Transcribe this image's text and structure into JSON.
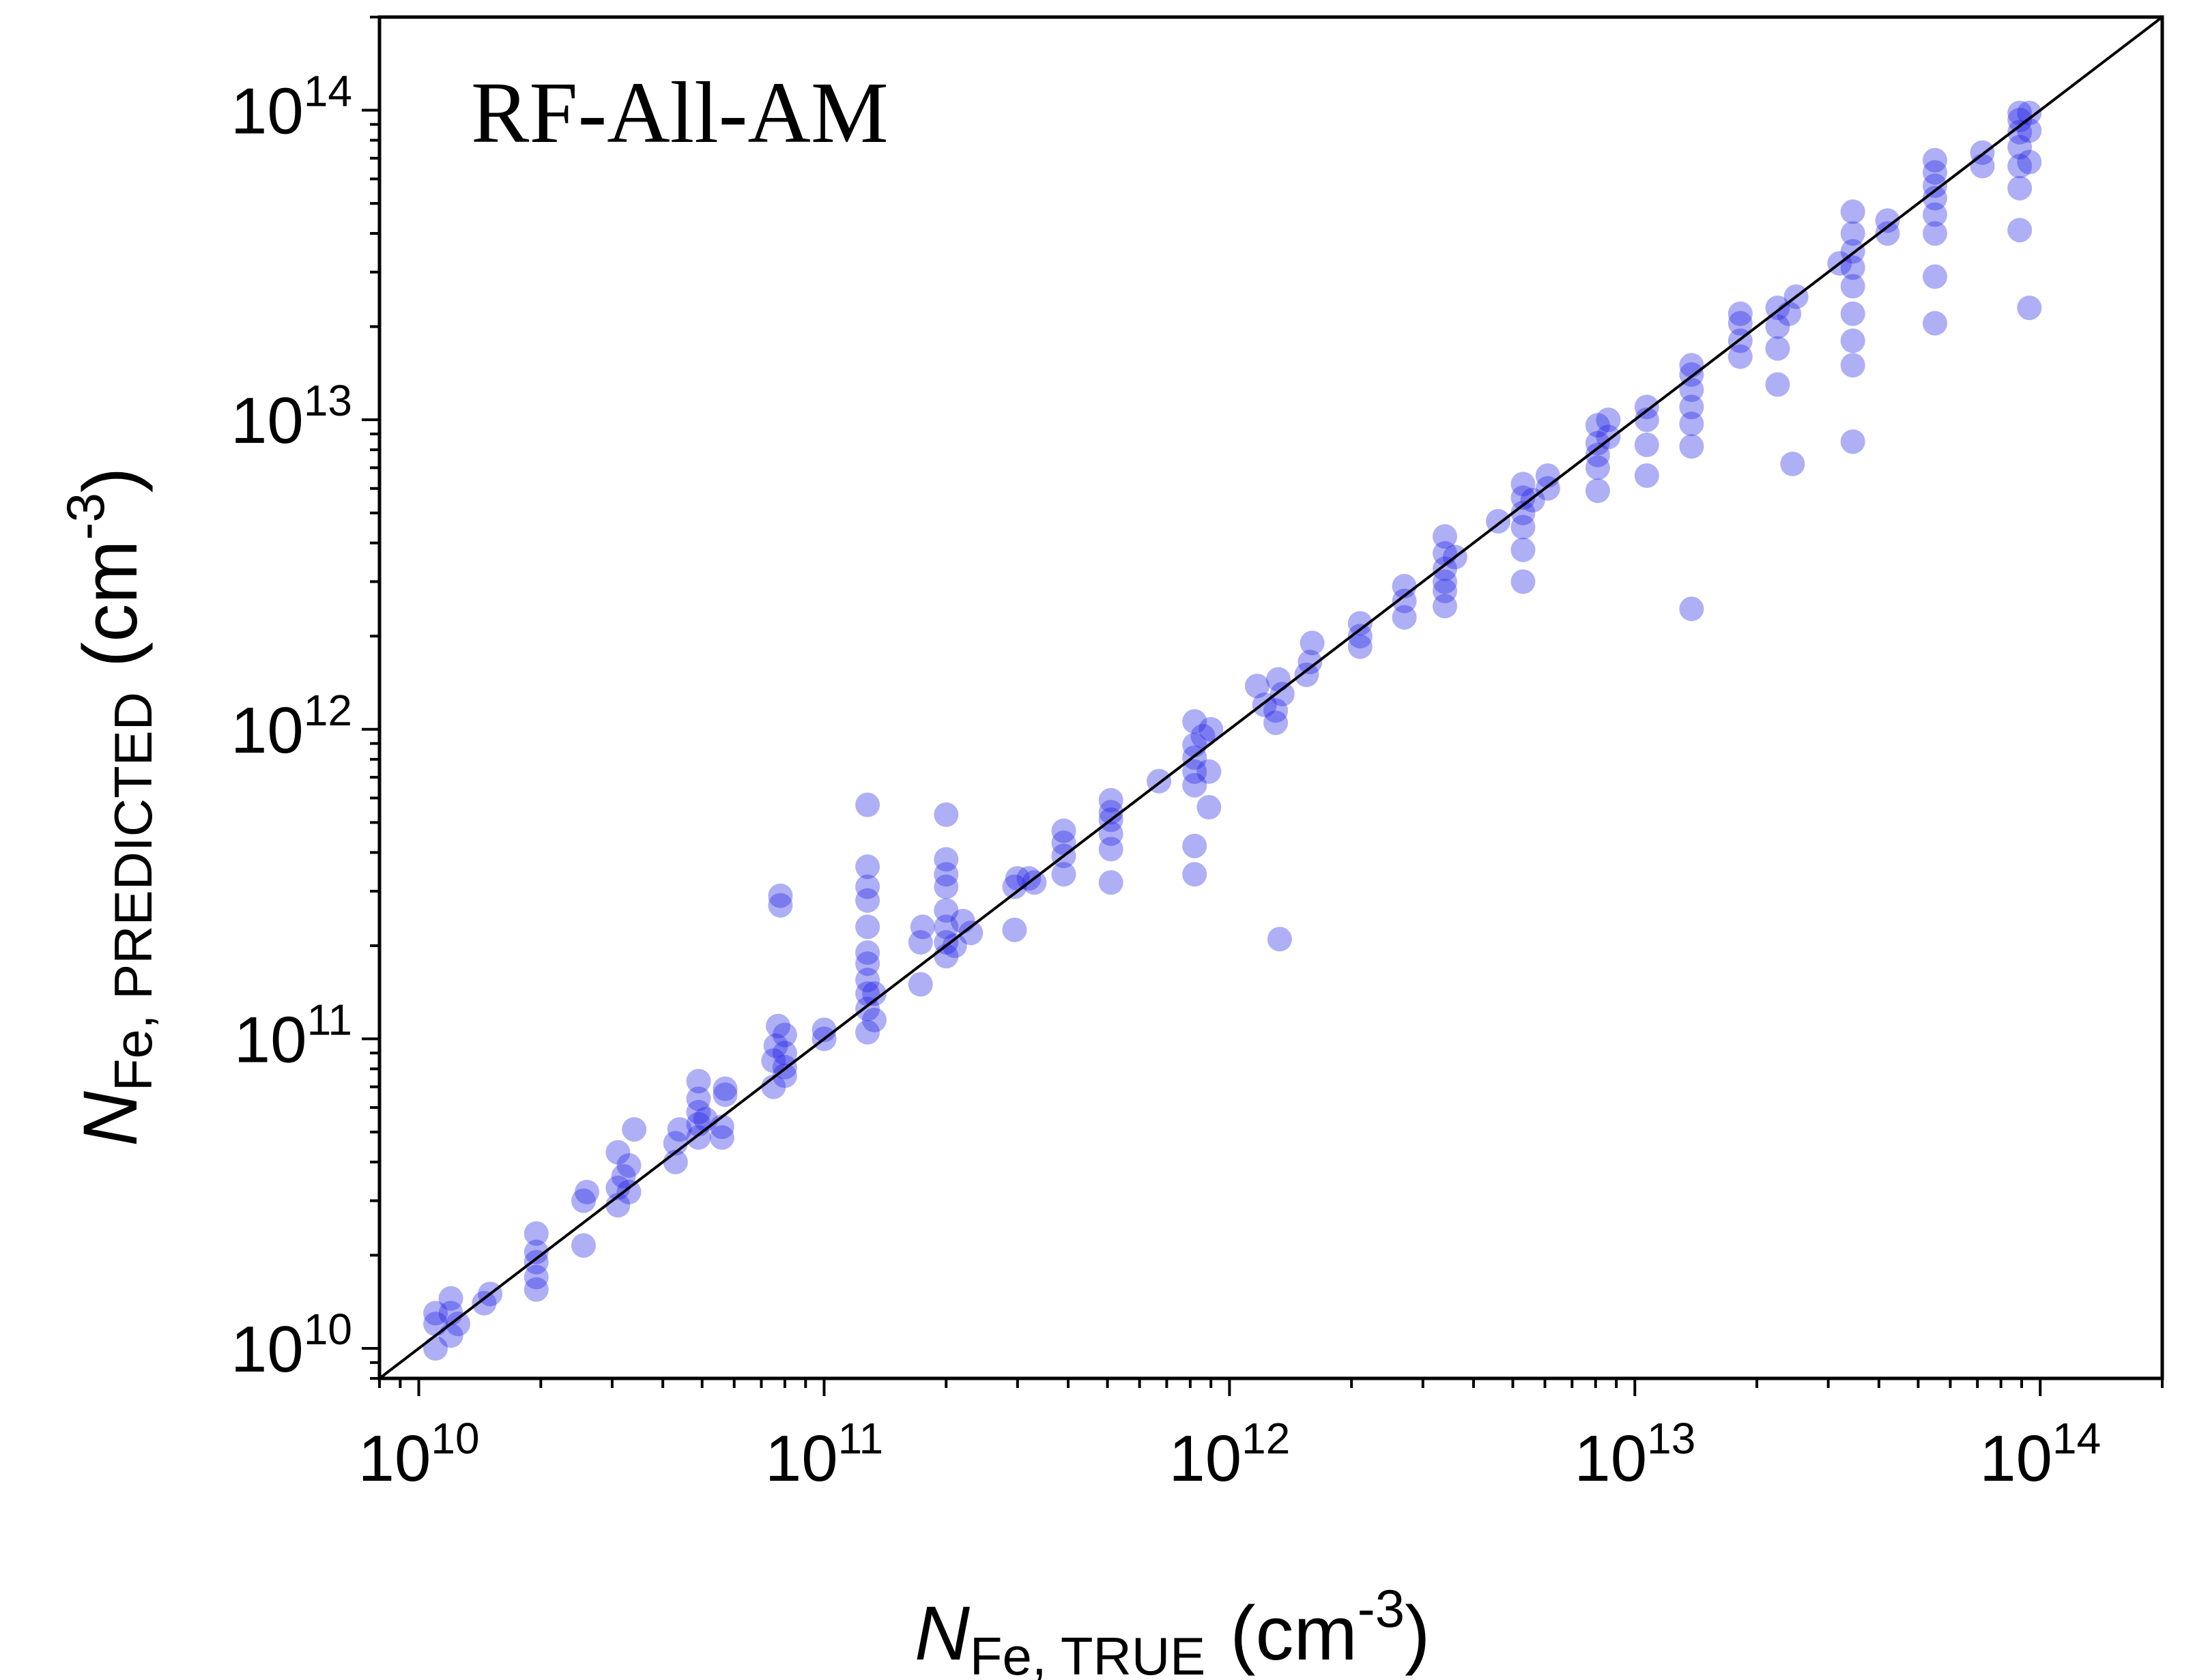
{
  "chart_data": {
    "type": "scatter",
    "title": "RF-All-AM",
    "xlabel": {
      "symbol": "N",
      "subscript": "Fe, TRUE",
      "unit": "(cm",
      "unit_exp": "-3",
      "unit_close": ")"
    },
    "ylabel": {
      "symbol": "N",
      "subscript": "Fe, PREDICTED",
      "unit": "(cm",
      "unit_exp": "-3",
      "unit_close": ")"
    },
    "x_scale": "log",
    "y_scale": "log",
    "xlim": [
      8000000000.0,
      200000000000000.0
    ],
    "ylim": [
      8000000000.0,
      200000000000000.0
    ],
    "x_ticks": [
      {
        "base": "10",
        "exp": "10",
        "value": 10000000000.0
      },
      {
        "base": "10",
        "exp": "11",
        "value": 100000000000.0
      },
      {
        "base": "10",
        "exp": "12",
        "value": 1000000000000.0
      },
      {
        "base": "10",
        "exp": "13",
        "value": 10000000000000.0
      },
      {
        "base": "10",
        "exp": "14",
        "value": 100000000000000.0
      }
    ],
    "y_ticks": [
      {
        "base": "10",
        "exp": "10",
        "value": 10000000000.0
      },
      {
        "base": "10",
        "exp": "11",
        "value": 100000000000.0
      },
      {
        "base": "10",
        "exp": "12",
        "value": 1000000000000.0
      },
      {
        "base": "10",
        "exp": "13",
        "value": 10000000000000.0
      },
      {
        "base": "10",
        "exp": "14",
        "value": 100000000000000.0
      }
    ],
    "reference_line": "y = x",
    "grid": false,
    "marker_color": "#1a1ae6",
    "line_color": "#000000",
    "points": [
      [
        11000000000.0,
        10000000000.0
      ],
      [
        11000000000.0,
        12000000000.0
      ],
      [
        11000000000.0,
        13000000000.0
      ],
      [
        12000000000.0,
        11000000000.0
      ],
      [
        12000000000.0,
        13000000000.0
      ],
      [
        12000000000.0,
        14500000000.0
      ],
      [
        12500000000.0,
        12000000000.0
      ],
      [
        14500000000.0,
        14000000000.0
      ],
      [
        15000000000.0,
        15000000000.0
      ],
      [
        19500000000.0,
        15500000000.0
      ],
      [
        19500000000.0,
        17000000000.0
      ],
      [
        19500000000.0,
        19000000000.0
      ],
      [
        19500000000.0,
        20500000000.0
      ],
      [
        19500000000.0,
        23500000000.0
      ],
      [
        25500000000.0,
        21500000000.0
      ],
      [
        25500000000.0,
        30000000000.0
      ],
      [
        26000000000.0,
        32000000000.0
      ],
      [
        31000000000.0,
        29000000000.0
      ],
      [
        31000000000.0,
        33000000000.0
      ],
      [
        32000000000.0,
        36000000000.0
      ],
      [
        31000000000.0,
        43000000000.0
      ],
      [
        33000000000.0,
        39000000000.0
      ],
      [
        34000000000.0,
        51000000000.0
      ],
      [
        33000000000.0,
        32000000000.0
      ],
      [
        43000000000.0,
        40000000000.0
      ],
      [
        43000000000.0,
        46000000000.0
      ],
      [
        44000000000.0,
        51000000000.0
      ],
      [
        49000000000.0,
        48000000000.0
      ],
      [
        49000000000.0,
        53000000000.0
      ],
      [
        49000000000.0,
        58000000000.0
      ],
      [
        49000000000.0,
        64000000000.0
      ],
      [
        49000000000.0,
        73000000000.0
      ],
      [
        51000000000.0,
        55000000000.0
      ],
      [
        56000000000.0,
        48000000000.0
      ],
      [
        56000000000.0,
        52000000000.0
      ],
      [
        57000000000.0,
        66000000000.0
      ],
      [
        57000000000.0,
        69000000000.0
      ],
      [
        75000000000.0,
        70000000000.0
      ],
      [
        75000000000.0,
        85000000000.0
      ],
      [
        76000000000.0,
        95000000000.0
      ],
      [
        77000000000.0,
        110000000000.0
      ],
      [
        78000000000.0,
        290000000000.0
      ],
      [
        78000000000.0,
        270000000000.0
      ],
      [
        80000000000.0,
        76000000000.0
      ],
      [
        80000000000.0,
        81000000000.0
      ],
      [
        80000000000.0,
        103000000000.0
      ],
      [
        80000000000.0,
        90000000000.0
      ],
      [
        100000000000.0,
        100000000000.0
      ],
      [
        100000000000.0,
        107000000000.0
      ],
      [
        128000000000.0,
        105000000000.0
      ],
      [
        128000000000.0,
        125000000000.0
      ],
      [
        128000000000.0,
        140000000000.0
      ],
      [
        128000000000.0,
        155000000000.0
      ],
      [
        128000000000.0,
        175000000000.0
      ],
      [
        128000000000.0,
        190000000000.0
      ],
      [
        128000000000.0,
        230000000000.0
      ],
      [
        128000000000.0,
        280000000000.0
      ],
      [
        128000000000.0,
        310000000000.0
      ],
      [
        128000000000.0,
        360000000000.0
      ],
      [
        128000000000.0,
        570000000000.0
      ],
      [
        133000000000.0,
        115000000000.0
      ],
      [
        133000000000.0,
        140000000000.0
      ],
      [
        173000000000.0,
        150000000000.0
      ],
      [
        173000000000.0,
        205000000000.0
      ],
      [
        175000000000.0,
        230000000000.0
      ],
      [
        200000000000.0,
        185000000000.0
      ],
      [
        200000000000.0,
        205000000000.0
      ],
      [
        200000000000.0,
        230000000000.0
      ],
      [
        200000000000.0,
        260000000000.0
      ],
      [
        200000000000.0,
        310000000000.0
      ],
      [
        200000000000.0,
        340000000000.0
      ],
      [
        200000000000.0,
        380000000000.0
      ],
      [
        200000000000.0,
        530000000000.0
      ],
      [
        210000000000.0,
        200000000000.0
      ],
      [
        220000000000.0,
        240000000000.0
      ],
      [
        230000000000.0,
        220000000000.0
      ],
      [
        295000000000.0,
        225000000000.0
      ],
      [
        295000000000.0,
        310000000000.0
      ],
      [
        300000000000.0,
        330000000000.0
      ],
      [
        320000000000.0,
        330000000000.0
      ],
      [
        330000000000.0,
        320000000000.0
      ],
      [
        390000000000.0,
        340000000000.0
      ],
      [
        390000000000.0,
        390000000000.0
      ],
      [
        390000000000.0,
        430000000000.0
      ],
      [
        390000000000.0,
        470000000000.0
      ],
      [
        510000000000.0,
        320000000000.0
      ],
      [
        510000000000.0,
        410000000000.0
      ],
      [
        510000000000.0,
        460000000000.0
      ],
      [
        510000000000.0,
        510000000000.0
      ],
      [
        510000000000.0,
        540000000000.0
      ],
      [
        510000000000.0,
        590000000000.0
      ],
      [
        670000000000.0,
        680000000000.0
      ],
      [
        820000000000.0,
        340000000000.0
      ],
      [
        820000000000.0,
        420000000000.0
      ],
      [
        820000000000.0,
        660000000000.0
      ],
      [
        820000000000.0,
        730000000000.0
      ],
      [
        820000000000.0,
        810000000000.0
      ],
      [
        820000000000.0,
        890000000000.0
      ],
      [
        820000000000.0,
        1060000000000.0
      ],
      [
        860000000000.0,
        950000000000.0
      ],
      [
        890000000000.0,
        560000000000.0
      ],
      [
        890000000000.0,
        730000000000.0
      ],
      [
        900000000000.0,
        1000000000000.0
      ],
      [
        1170000000000.0,
        1380000000000.0
      ],
      [
        1220000000000.0,
        1200000000000.0
      ],
      [
        1300000000000.0,
        1050000000000.0
      ],
      [
        1300000000000.0,
        1150000000000.0
      ],
      [
        1320000000000.0,
        1450000000000.0
      ],
      [
        1330000000000.0,
        210000000000.0
      ],
      [
        1350000000000.0,
        1300000000000.0
      ],
      [
        1550000000000.0,
        1500000000000.0
      ],
      [
        1580000000000.0,
        1650000000000.0
      ],
      [
        1600000000000.0,
        1900000000000.0
      ],
      [
        2100000000000.0,
        1850000000000.0
      ],
      [
        2100000000000.0,
        2000000000000.0
      ],
      [
        2100000000000.0,
        2200000000000.0
      ],
      [
        2700000000000.0,
        2300000000000.0
      ],
      [
        2700000000000.0,
        2600000000000.0
      ],
      [
        2700000000000.0,
        2900000000000.0
      ],
      [
        3400000000000.0,
        2500000000000.0
      ],
      [
        3400000000000.0,
        2800000000000.0
      ],
      [
        3400000000000.0,
        3000000000000.0
      ],
      [
        3400000000000.0,
        3300000000000.0
      ],
      [
        3400000000000.0,
        3700000000000.0
      ],
      [
        3400000000000.0,
        4200000000000.0
      ],
      [
        3600000000000.0,
        3600000000000.0
      ],
      [
        4600000000000.0,
        4700000000000.0
      ],
      [
        5300000000000.0,
        3000000000000.0
      ],
      [
        5300000000000.0,
        3800000000000.0
      ],
      [
        5300000000000.0,
        4500000000000.0
      ],
      [
        5300000000000.0,
        5000000000000.0
      ],
      [
        5300000000000.0,
        5600000000000.0
      ],
      [
        5300000000000.0,
        6200000000000.0
      ],
      [
        5600000000000.0,
        5500000000000.0
      ],
      [
        6100000000000.0,
        6000000000000.0
      ],
      [
        6100000000000.0,
        6600000000000.0
      ],
      [
        8100000000000.0,
        5900000000000.0
      ],
      [
        8100000000000.0,
        7000000000000.0
      ],
      [
        8100000000000.0,
        7700000000000.0
      ],
      [
        8100000000000.0,
        8400000000000.0
      ],
      [
        8100000000000.0,
        9600000000000.0
      ],
      [
        8600000000000.0,
        8800000000000.0
      ],
      [
        8600000000000.0,
        10000000000000.0
      ],
      [
        10700000000000.0,
        6600000000000.0
      ],
      [
        10700000000000.0,
        8300000000000.0
      ],
      [
        10700000000000.0,
        10000000000000.0
      ],
      [
        10700000000000.0,
        11000000000000.0
      ],
      [
        13800000000000.0,
        8200000000000.0
      ],
      [
        13800000000000.0,
        9700000000000.0
      ],
      [
        13800000000000.0,
        11000000000000.0
      ],
      [
        13800000000000.0,
        12500000000000.0
      ],
      [
        13800000000000.0,
        14000000000000.0
      ],
      [
        13800000000000.0,
        15000000000000.0
      ],
      [
        13800000000000.0,
        2450000000000.0
      ],
      [
        18200000000000.0,
        16000000000000.0
      ],
      [
        18200000000000.0,
        18000000000000.0
      ],
      [
        18200000000000.0,
        20500000000000.0
      ],
      [
        18200000000000.0,
        22000000000000.0
      ],
      [
        22500000000000.0,
        13000000000000.0
      ],
      [
        22500000000000.0,
        17000000000000.0
      ],
      [
        22500000000000.0,
        20000000000000.0
      ],
      [
        22500000000000.0,
        23000000000000.0
      ],
      [
        24000000000000.0,
        22000000000000.0
      ],
      [
        24500000000000.0,
        7200000000000.0
      ],
      [
        25000000000000.0,
        25000000000000.0
      ],
      [
        32000000000000.0,
        32000000000000.0
      ],
      [
        34500000000000.0,
        8500000000000.0
      ],
      [
        34500000000000.0,
        15000000000000.0
      ],
      [
        34500000000000.0,
        18000000000000.0
      ],
      [
        34500000000000.0,
        22000000000000.0
      ],
      [
        34500000000000.0,
        27000000000000.0
      ],
      [
        34500000000000.0,
        31000000000000.0
      ],
      [
        34500000000000.0,
        35000000000000.0
      ],
      [
        34500000000000.0,
        40000000000000.0
      ],
      [
        34500000000000.0,
        47000000000000.0
      ],
      [
        42000000000000.0,
        40000000000000.0
      ],
      [
        42000000000000.0,
        44000000000000.0
      ],
      [
        55000000000000.0,
        20500000000000.0
      ],
      [
        55000000000000.0,
        29000000000000.0
      ],
      [
        55000000000000.0,
        40000000000000.0
      ],
      [
        55000000000000.0,
        46000000000000.0
      ],
      [
        55000000000000.0,
        52000000000000.0
      ],
      [
        55000000000000.0,
        57000000000000.0
      ],
      [
        55000000000000.0,
        63000000000000.0
      ],
      [
        55000000000000.0,
        69000000000000.0
      ],
      [
        72000000000000.0,
        66000000000000.0
      ],
      [
        72000000000000.0,
        73000000000000.0
      ],
      [
        89000000000000.0,
        41000000000000.0
      ],
      [
        89000000000000.0,
        56000000000000.0
      ],
      [
        89000000000000.0,
        66000000000000.0
      ],
      [
        89000000000000.0,
        76000000000000.0
      ],
      [
        89000000000000.0,
        85000000000000.0
      ],
      [
        89000000000000.0,
        93000000000000.0
      ],
      [
        89000000000000.0,
        98000000000000.0
      ],
      [
        94000000000000.0,
        23000000000000.0
      ],
      [
        94000000000000.0,
        68000000000000.0
      ],
      [
        94000000000000.0,
        86000000000000.0
      ],
      [
        94000000000000.0,
        98000000000000.0
      ]
    ]
  }
}
